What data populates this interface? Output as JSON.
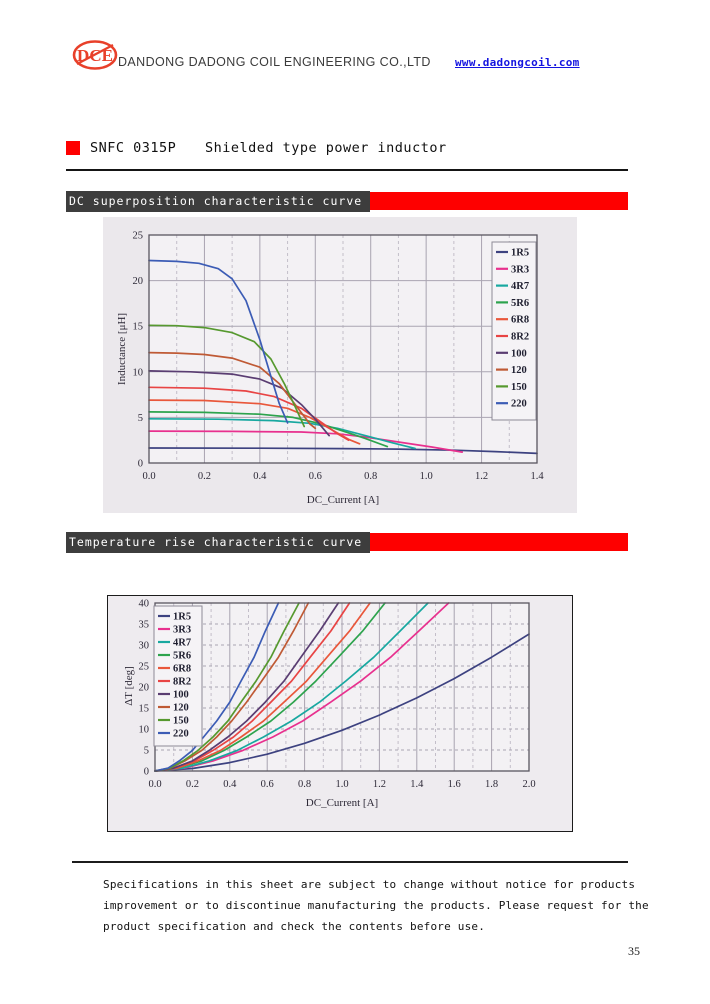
{
  "header": {
    "logo_text": "DCE",
    "company": "DANDONG DADONG COIL ENGINEERING CO.,LTD",
    "website": "www.dadongcoil.com"
  },
  "title": {
    "part_number": "SNFC 0315P",
    "description": "Shielded type power inductor"
  },
  "sections": [
    {
      "heading": "DC superposition characteristic curve"
    },
    {
      "heading": "Temperature rise characteristic curve"
    }
  ],
  "footer": {
    "lines": [
      "Specifications in this sheet are subject to change without notice for products",
      "improvement or to discontinue manufacturing the products. Please request for the",
      "product specification and check the contents before use."
    ]
  },
  "page": {
    "number": "35"
  },
  "colors": {
    "accent_red": "#fe0000",
    "banner_dark": "#3d3d3d",
    "logo_red": "#e8402a",
    "link_blue": "#1414e0"
  },
  "chart_data": [
    {
      "type": "line",
      "title": "DC superposition characteristic curve",
      "xlabel": "DC_Current [A]",
      "ylabel": "Inductance [μH]",
      "xlim": [
        0,
        1.4
      ],
      "ylim": [
        0,
        25
      ],
      "x_ticks": [
        0,
        0.2,
        0.4,
        0.6,
        0.8,
        1.0,
        1.2,
        1.4
      ],
      "x_tick_labels": [
        "0.0",
        "0.2",
        "0.4",
        "0.6",
        "0.8",
        "1.0",
        "1.2",
        "1.4"
      ],
      "x_minor_ticks": [
        0.1,
        0.3,
        0.5,
        0.7,
        0.9,
        1.1,
        1.3
      ],
      "y_ticks": [
        0,
        5,
        10,
        15,
        20,
        25
      ],
      "y_tick_labels": [
        "0",
        "5",
        "10",
        "15",
        "20",
        "25"
      ],
      "h_grid_dashed": false,
      "grid": true,
      "legend_position": "top-right",
      "series": [
        {
          "name": "1R5",
          "color": "#3d4280",
          "points": [
            [
              0,
              1.65
            ],
            [
              0.4,
              1.62
            ],
            [
              0.7,
              1.58
            ],
            [
              0.9,
              1.52
            ],
            [
              1.1,
              1.4
            ],
            [
              1.25,
              1.25
            ],
            [
              1.4,
              1.05
            ]
          ]
        },
        {
          "name": "3R3",
          "color": "#e8308e",
          "points": [
            [
              0,
              3.5
            ],
            [
              0.3,
              3.47
            ],
            [
              0.55,
              3.4
            ],
            [
              0.68,
              3.2
            ],
            [
              0.78,
              2.85
            ],
            [
              0.9,
              2.3
            ],
            [
              1.02,
              1.75
            ],
            [
              1.13,
              1.2
            ]
          ]
        },
        {
          "name": "4R7",
          "color": "#18a8a0",
          "points": [
            [
              0,
              4.85
            ],
            [
              0.25,
              4.8
            ],
            [
              0.45,
              4.65
            ],
            [
              0.58,
              4.35
            ],
            [
              0.68,
              3.8
            ],
            [
              0.78,
              3.0
            ],
            [
              0.88,
              2.2
            ],
            [
              0.96,
              1.6
            ]
          ]
        },
        {
          "name": "5R6",
          "color": "#2da34d",
          "points": [
            [
              0,
              5.6
            ],
            [
              0.2,
              5.55
            ],
            [
              0.4,
              5.35
            ],
            [
              0.52,
              5.0
            ],
            [
              0.62,
              4.3
            ],
            [
              0.7,
              3.5
            ],
            [
              0.78,
              2.7
            ],
            [
              0.86,
              1.8
            ]
          ]
        },
        {
          "name": "6R8",
          "color": "#e9573b",
          "points": [
            [
              0,
              6.9
            ],
            [
              0.2,
              6.85
            ],
            [
              0.4,
              6.5
            ],
            [
              0.5,
              6.0
            ],
            [
              0.58,
              5.0
            ],
            [
              0.65,
              3.8
            ],
            [
              0.72,
              2.6
            ],
            [
              0.76,
              2.1
            ]
          ]
        },
        {
          "name": "8R2",
          "color": "#e84444",
          "points": [
            [
              0,
              8.3
            ],
            [
              0.2,
              8.2
            ],
            [
              0.35,
              7.9
            ],
            [
              0.45,
              7.3
            ],
            [
              0.55,
              6.0
            ],
            [
              0.62,
              4.5
            ],
            [
              0.68,
              3.2
            ],
            [
              0.72,
              2.5
            ]
          ]
        },
        {
          "name": "100",
          "color": "#5a3d72",
          "points": [
            [
              0,
              10.1
            ],
            [
              0.15,
              10.0
            ],
            [
              0.3,
              9.75
            ],
            [
              0.4,
              9.2
            ],
            [
              0.48,
              8.2
            ],
            [
              0.55,
              6.4
            ],
            [
              0.6,
              4.8
            ],
            [
              0.65,
              3.0
            ]
          ]
        },
        {
          "name": "120",
          "color": "#bf5a35",
          "points": [
            [
              0,
              12.1
            ],
            [
              0.1,
              12.05
            ],
            [
              0.2,
              11.9
            ],
            [
              0.3,
              11.5
            ],
            [
              0.4,
              10.5
            ],
            [
              0.47,
              8.7
            ],
            [
              0.53,
              6.3
            ],
            [
              0.58,
              4.3
            ],
            [
              0.6,
              3.8
            ]
          ]
        },
        {
          "name": "150",
          "color": "#56992f",
          "points": [
            [
              0,
              15.1
            ],
            [
              0.1,
              15.05
            ],
            [
              0.2,
              14.85
            ],
            [
              0.3,
              14.3
            ],
            [
              0.38,
              13.3
            ],
            [
              0.44,
              11.4
            ],
            [
              0.49,
              8.6
            ],
            [
              0.53,
              6.0
            ],
            [
              0.56,
              4.0
            ]
          ]
        },
        {
          "name": "220",
          "color": "#3c5cb5",
          "points": [
            [
              0,
              22.2
            ],
            [
              0.1,
              22.1
            ],
            [
              0.18,
              21.9
            ],
            [
              0.25,
              21.3
            ],
            [
              0.3,
              20.2
            ],
            [
              0.35,
              17.8
            ],
            [
              0.4,
              13.5
            ],
            [
              0.44,
              9.5
            ],
            [
              0.47,
              6.5
            ],
            [
              0.5,
              4.4
            ]
          ]
        }
      ]
    },
    {
      "type": "line",
      "title": "Temperature rise characteristic curve",
      "xlabel": "DC_Current [A]",
      "ylabel": "ΔT [deg]",
      "xlim": [
        0,
        2.0
      ],
      "ylim": [
        0,
        40
      ],
      "x_ticks": [
        0,
        0.2,
        0.4,
        0.6,
        0.8,
        1.0,
        1.2,
        1.4,
        1.6,
        1.8,
        2.0
      ],
      "x_tick_labels": [
        "0.0",
        "0.2",
        "0.4",
        "0.6",
        "0.8",
        "1.0",
        "1.2",
        "1.4",
        "1.6",
        "1.8",
        "2.0"
      ],
      "x_minor_ticks": [
        0.1,
        0.3,
        0.5,
        0.7,
        0.9,
        1.1,
        1.3,
        1.5,
        1.7,
        1.9
      ],
      "y_ticks": [
        0,
        5,
        10,
        15,
        20,
        25,
        30,
        35,
        40
      ],
      "y_tick_labels": [
        "0",
        "5",
        "10",
        "15",
        "20",
        "25",
        "30",
        "35",
        "40"
      ],
      "h_grid_dashed": true,
      "grid": true,
      "legend_position": "top-left",
      "series": [
        {
          "name": "1R5",
          "color": "#3d4280",
          "points": [
            [
              0,
              0
            ],
            [
              0.2,
              0.6
            ],
            [
              0.4,
              2.0
            ],
            [
              0.6,
              4.0
            ],
            [
              0.8,
              6.6
            ],
            [
              1.0,
              9.7
            ],
            [
              1.2,
              13.3
            ],
            [
              1.4,
              17.4
            ],
            [
              1.6,
              22.0
            ],
            [
              1.8,
              27.1
            ],
            [
              2.0,
              32.6
            ]
          ]
        },
        {
          "name": "3R3",
          "color": "#e8308e",
          "points": [
            [
              0,
              0
            ],
            [
              0.16,
              0.7
            ],
            [
              0.31,
              2.4
            ],
            [
              0.47,
              4.9
            ],
            [
              0.63,
              8.1
            ],
            [
              0.79,
              11.9
            ],
            [
              0.94,
              16.4
            ],
            [
              1.1,
              21.4
            ],
            [
              1.26,
              27.1
            ],
            [
              1.41,
              33.3
            ],
            [
              1.57,
              40
            ]
          ]
        },
        {
          "name": "4R7",
          "color": "#18a8a0",
          "points": [
            [
              0,
              0
            ],
            [
              0.15,
              0.7
            ],
            [
              0.29,
              2.4
            ],
            [
              0.44,
              4.9
            ],
            [
              0.58,
              8.1
            ],
            [
              0.73,
              11.9
            ],
            [
              0.88,
              16.4
            ],
            [
              1.02,
              21.4
            ],
            [
              1.17,
              27.1
            ],
            [
              1.31,
              33.3
            ],
            [
              1.46,
              40
            ]
          ]
        },
        {
          "name": "5R6",
          "color": "#2da34d",
          "points": [
            [
              0,
              0
            ],
            [
              0.12,
              0.7
            ],
            [
              0.25,
              2.4
            ],
            [
              0.37,
              4.9
            ],
            [
              0.49,
              8.1
            ],
            [
              0.62,
              11.9
            ],
            [
              0.74,
              16.4
            ],
            [
              0.86,
              21.4
            ],
            [
              0.98,
              27.1
            ],
            [
              1.11,
              33.3
            ],
            [
              1.23,
              40
            ]
          ]
        },
        {
          "name": "6R8",
          "color": "#e9573b",
          "points": [
            [
              0,
              0
            ],
            [
              0.12,
              0.7
            ],
            [
              0.23,
              2.4
            ],
            [
              0.35,
              4.9
            ],
            [
              0.46,
              8.1
            ],
            [
              0.58,
              11.9
            ],
            [
              0.69,
              16.4
            ],
            [
              0.81,
              21.4
            ],
            [
              0.92,
              27.1
            ],
            [
              1.04,
              33.3
            ],
            [
              1.15,
              40
            ]
          ]
        },
        {
          "name": "8R2",
          "color": "#e84444",
          "points": [
            [
              0,
              0
            ],
            [
              0.1,
              0.7
            ],
            [
              0.21,
              2.4
            ],
            [
              0.31,
              4.9
            ],
            [
              0.42,
              8.1
            ],
            [
              0.52,
              11.9
            ],
            [
              0.62,
              16.4
            ],
            [
              0.73,
              21.4
            ],
            [
              0.83,
              27.1
            ],
            [
              0.94,
              33.3
            ],
            [
              1.04,
              40
            ]
          ]
        },
        {
          "name": "100",
          "color": "#5a3d72",
          "points": [
            [
              0,
              0
            ],
            [
              0.1,
              0.7
            ],
            [
              0.2,
              2.4
            ],
            [
              0.29,
              4.9
            ],
            [
              0.39,
              8.1
            ],
            [
              0.49,
              11.9
            ],
            [
              0.59,
              16.4
            ],
            [
              0.69,
              21.4
            ],
            [
              0.78,
              27.1
            ],
            [
              0.88,
              33.3
            ],
            [
              0.98,
              40
            ]
          ]
        },
        {
          "name": "120",
          "color": "#bf5a35",
          "points": [
            [
              0,
              0
            ],
            [
              0.08,
              0.7
            ],
            [
              0.16,
              2.4
            ],
            [
              0.25,
              4.9
            ],
            [
              0.33,
              8.1
            ],
            [
              0.41,
              11.9
            ],
            [
              0.49,
              16.4
            ],
            [
              0.57,
              21.4
            ],
            [
              0.66,
              27.1
            ],
            [
              0.74,
              33.3
            ],
            [
              0.82,
              40
            ]
          ]
        },
        {
          "name": "150",
          "color": "#56992f",
          "points": [
            [
              0,
              0
            ],
            [
              0.08,
              0.7
            ],
            [
              0.15,
              2.4
            ],
            [
              0.23,
              4.9
            ],
            [
              0.31,
              8.1
            ],
            [
              0.39,
              11.9
            ],
            [
              0.46,
              16.4
            ],
            [
              0.54,
              21.4
            ],
            [
              0.62,
              27.1
            ],
            [
              0.69,
              33.3
            ],
            [
              0.77,
              40
            ]
          ]
        },
        {
          "name": "220",
          "color": "#3c5cb5",
          "points": [
            [
              0,
              0
            ],
            [
              0.07,
              0.7
            ],
            [
              0.13,
              2.4
            ],
            [
              0.2,
              4.9
            ],
            [
              0.26,
              8.1
            ],
            [
              0.33,
              11.9
            ],
            [
              0.4,
              16.4
            ],
            [
              0.46,
              21.4
            ],
            [
              0.53,
              27.1
            ],
            [
              0.59,
              33.3
            ],
            [
              0.66,
              40
            ]
          ]
        }
      ]
    }
  ]
}
